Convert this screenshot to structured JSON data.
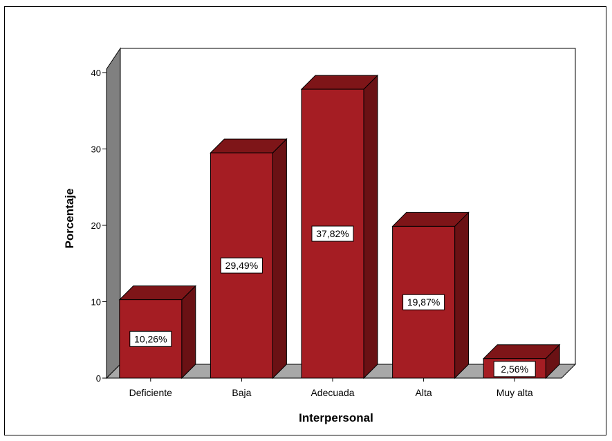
{
  "chart_data": {
    "type": "bar",
    "categories": [
      "Deficiente",
      "Baja",
      "Adecuada",
      "Alta",
      "Muy alta"
    ],
    "values": [
      10.26,
      29.49,
      37.82,
      19.87,
      2.56
    ],
    "value_labels": [
      "10,26%",
      "29,49%",
      "37,82%",
      "19,87%",
      "2,56%"
    ],
    "xlabel": "Interpersonal",
    "ylabel": "Porcentaje",
    "ylim": [
      0,
      40
    ],
    "yticks": [
      0,
      10,
      20,
      30,
      40
    ],
    "grid": false,
    "style": "3d",
    "colors": {
      "bar_front": "#a51d23",
      "bar_side": "#6a1114",
      "bar_top": "#7e1518",
      "wall": "#808080",
      "floor": "#a8a8a8"
    }
  }
}
